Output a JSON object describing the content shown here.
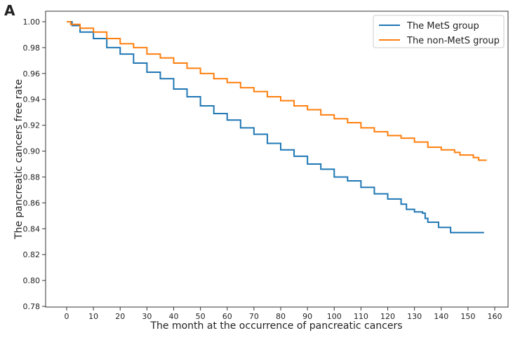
{
  "panel_label": "A",
  "chart_data": {
    "type": "line",
    "step": true,
    "xlabel": "The month at the occurrence of pancreatic cancers",
    "ylabel": "The pancreatic cancers free rate",
    "xlim": [
      -8,
      164
    ],
    "ylim": [
      0.78,
      1.008
    ],
    "xticks": [
      0,
      10,
      20,
      30,
      40,
      50,
      60,
      70,
      80,
      90,
      100,
      110,
      120,
      130,
      140,
      150,
      160
    ],
    "yticks": [
      "0.78",
      "0.80",
      "0.82",
      "0.84",
      "0.86",
      "0.88",
      "0.90",
      "0.92",
      "0.94",
      "0.96",
      "0.98",
      "1.00"
    ],
    "grid": false,
    "legend_position": "top-right",
    "series": [
      {
        "name": "The MetS group",
        "color": "#1f77b4",
        "x": [
          0,
          2,
          5,
          10,
          15,
          20,
          25,
          30,
          35,
          40,
          45,
          50,
          55,
          60,
          65,
          70,
          75,
          80,
          85,
          90,
          95,
          100,
          105,
          110,
          115,
          120,
          125,
          127,
          130,
          133,
          134,
          135,
          138,
          139,
          143,
          143.5,
          156
        ],
        "y": [
          1.0,
          0.997,
          0.992,
          0.987,
          0.98,
          0.975,
          0.968,
          0.961,
          0.956,
          0.948,
          0.942,
          0.935,
          0.929,
          0.924,
          0.918,
          0.913,
          0.906,
          0.901,
          0.896,
          0.89,
          0.886,
          0.88,
          0.877,
          0.872,
          0.867,
          0.863,
          0.859,
          0.855,
          0.853,
          0.852,
          0.848,
          0.845,
          0.845,
          0.841,
          0.841,
          0.837,
          0.837
        ]
      },
      {
        "name": "The non-MetS group",
        "color": "#ff7f0e",
        "x": [
          0,
          1.5,
          5,
          10,
          15,
          20,
          25,
          30,
          35,
          40,
          45,
          50,
          55,
          60,
          65,
          70,
          75,
          80,
          85,
          90,
          95,
          100,
          105,
          110,
          115,
          120,
          125,
          130,
          135,
          140,
          145,
          147,
          151,
          152,
          154,
          157
        ],
        "y": [
          1.0,
          0.998,
          0.995,
          0.992,
          0.987,
          0.983,
          0.98,
          0.975,
          0.972,
          0.968,
          0.964,
          0.96,
          0.956,
          0.953,
          0.949,
          0.946,
          0.942,
          0.939,
          0.935,
          0.932,
          0.928,
          0.925,
          0.922,
          0.918,
          0.915,
          0.912,
          0.91,
          0.907,
          0.903,
          0.901,
          0.899,
          0.897,
          0.897,
          0.895,
          0.893,
          0.893
        ]
      }
    ]
  }
}
